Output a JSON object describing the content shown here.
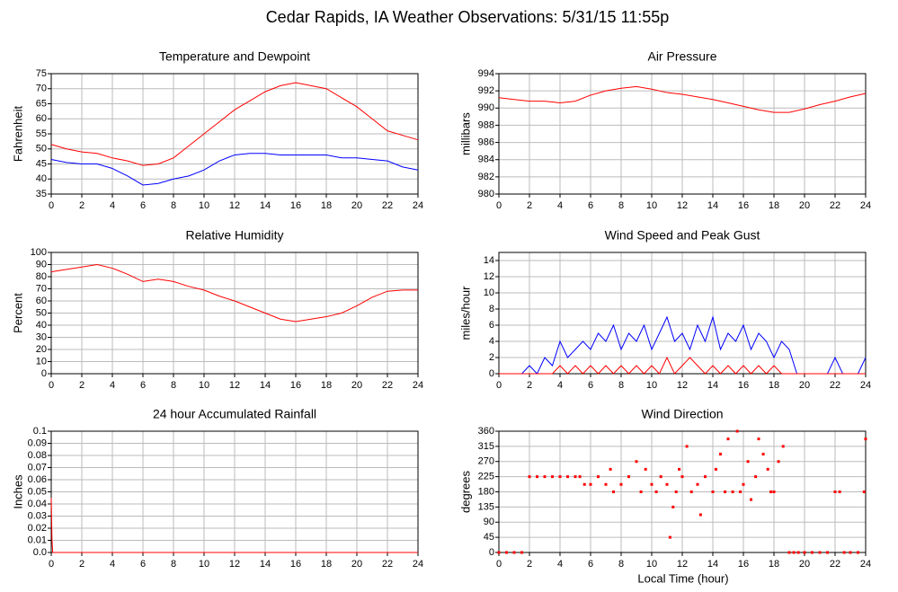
{
  "title": "Cedar Rapids, IA Weather Observations: 5/31/15 11:55p",
  "xlabel": "Local Time (hour)",
  "chart_data": [
    {
      "type": "line",
      "title": "Temperature and Dewpoint",
      "ylabel": "Fahrenheit",
      "x": [
        0,
        1,
        2,
        3,
        4,
        5,
        6,
        7,
        8,
        9,
        10,
        11,
        12,
        13,
        14,
        15,
        16,
        17,
        18,
        19,
        20,
        21,
        22,
        23,
        24
      ],
      "series": [
        {
          "name": "Temperature",
          "color": "#ff0000",
          "values": [
            51.5,
            50,
            49,
            48.5,
            47,
            46,
            44.5,
            45,
            47,
            51,
            55,
            59,
            63,
            66,
            69,
            71,
            72,
            71,
            70,
            67,
            64,
            60,
            56,
            54.5,
            53
          ]
        },
        {
          "name": "Dewpoint",
          "color": "#0000ff",
          "values": [
            46.5,
            45.5,
            45,
            45,
            43.5,
            41,
            38,
            38.5,
            40,
            41,
            43,
            46,
            48,
            48.5,
            48.5,
            48,
            48,
            48,
            48,
            47,
            47,
            46.5,
            46,
            44,
            43
          ]
        }
      ],
      "xlim": [
        0,
        24
      ],
      "xticks": [
        0,
        2,
        4,
        6,
        8,
        10,
        12,
        14,
        16,
        18,
        20,
        22,
        24
      ],
      "ylim": [
        35,
        75
      ],
      "yticks": [
        35,
        40,
        45,
        50,
        55,
        60,
        65,
        70,
        75
      ],
      "grid": true
    },
    {
      "type": "line",
      "title": "Air Pressure",
      "ylabel": "millibars",
      "x": [
        0,
        1,
        2,
        3,
        4,
        5,
        6,
        7,
        8,
        9,
        10,
        11,
        12,
        13,
        14,
        15,
        16,
        17,
        18,
        19,
        20,
        21,
        22,
        23,
        24
      ],
      "series": [
        {
          "name": "Pressure",
          "color": "#ff0000",
          "values": [
            991.2,
            991,
            990.8,
            990.8,
            990.6,
            990.8,
            991.5,
            992,
            992.3,
            992.5,
            992.2,
            991.8,
            991.6,
            991.3,
            991,
            990.6,
            990.2,
            989.8,
            989.5,
            989.5,
            989.9,
            990.4,
            990.8,
            991.3,
            991.7
          ]
        }
      ],
      "xlim": [
        0,
        24
      ],
      "xticks": [
        0,
        2,
        4,
        6,
        8,
        10,
        12,
        14,
        16,
        18,
        20,
        22,
        24
      ],
      "ylim": [
        980,
        994
      ],
      "yticks": [
        980,
        982,
        984,
        986,
        988,
        990,
        992,
        994
      ],
      "grid": true
    },
    {
      "type": "line",
      "title": "Relative Humidity",
      "ylabel": "Percent",
      "x": [
        0,
        1,
        2,
        3,
        4,
        5,
        6,
        7,
        8,
        9,
        10,
        11,
        12,
        13,
        14,
        15,
        16,
        17,
        18,
        19,
        20,
        21,
        22,
        23,
        24
      ],
      "series": [
        {
          "name": "Humidity",
          "color": "#ff0000",
          "values": [
            84,
            86,
            88,
            90,
            87,
            82,
            76,
            78,
            76,
            72,
            69,
            64,
            60,
            55,
            50,
            45,
            43,
            45,
            47,
            50,
            56,
            63,
            68,
            69,
            69
          ]
        }
      ],
      "xlim": [
        0,
        24
      ],
      "xticks": [
        0,
        2,
        4,
        6,
        8,
        10,
        12,
        14,
        16,
        18,
        20,
        22,
        24
      ],
      "ylim": [
        0,
        100
      ],
      "yticks": [
        0,
        10,
        20,
        30,
        40,
        50,
        60,
        70,
        80,
        90,
        100
      ],
      "grid": true
    },
    {
      "type": "line",
      "title": "Wind Speed and Peak Gust",
      "ylabel": "miles/hour",
      "x": [
        0,
        0.5,
        1,
        1.5,
        2,
        2.5,
        3,
        3.5,
        4,
        4.5,
        5,
        5.5,
        6,
        6.5,
        7,
        7.5,
        8,
        8.5,
        9,
        9.5,
        10,
        10.5,
        11,
        11.5,
        12,
        12.5,
        13,
        13.5,
        14,
        14.5,
        15,
        15.5,
        16,
        16.5,
        17,
        17.5,
        18,
        18.5,
        19,
        19.5,
        20,
        20.5,
        21,
        21.5,
        22,
        22.5,
        23,
        23.5,
        24
      ],
      "series": [
        {
          "name": "Wind Speed",
          "color": "#0000ff",
          "values": [
            0,
            0,
            0,
            0,
            1,
            0,
            2,
            1,
            4,
            2,
            3,
            4,
            3,
            5,
            4,
            6,
            3,
            5,
            4,
            6,
            3,
            5,
            7,
            4,
            5,
            3,
            6,
            4,
            7,
            3,
            5,
            4,
            6,
            3,
            5,
            4,
            2,
            4,
            3,
            0,
            0,
            0,
            0,
            0,
            2,
            0,
            0,
            0,
            2
          ]
        },
        {
          "name": "Peak Gust",
          "color": "#ff0000",
          "values": [
            0,
            0,
            0,
            0,
            0,
            0,
            0,
            0,
            1,
            0,
            1,
            0,
            1,
            0,
            1,
            0,
            1,
            0,
            1,
            0,
            1,
            0,
            2,
            0,
            1,
            2,
            1,
            0,
            1,
            0,
            1,
            0,
            1,
            0,
            1,
            0,
            1,
            0,
            0,
            0,
            0,
            0,
            0,
            0,
            0,
            0,
            0,
            0,
            0
          ]
        }
      ],
      "xlim": [
        0,
        24
      ],
      "xticks": [
        0,
        2,
        4,
        6,
        8,
        10,
        12,
        14,
        16,
        18,
        20,
        22,
        24
      ],
      "ylim": [
        0,
        15
      ],
      "yticks": [
        0,
        2,
        4,
        6,
        8,
        10,
        12,
        14
      ],
      "grid": true
    },
    {
      "type": "line",
      "title": "24 hour Accumulated Rainfall",
      "ylabel": "Inches",
      "x": [
        0,
        0.05,
        0.1,
        24
      ],
      "series": [
        {
          "name": "Rainfall",
          "color": "#ff0000",
          "values": [
            0.045,
            0.01,
            0,
            0
          ]
        }
      ],
      "xlim": [
        0,
        24
      ],
      "xticks": [
        0,
        2,
        4,
        6,
        8,
        10,
        12,
        14,
        16,
        18,
        20,
        22,
        24
      ],
      "ylim": [
        0,
        0.1
      ],
      "yticks": [
        {
          "value": 0,
          "label": "0.0"
        },
        0.01,
        0.02,
        0.03,
        0.04,
        0.05,
        0.06,
        0.07,
        0.08,
        0.09,
        0.1
      ],
      "grid": true
    },
    {
      "type": "scatter",
      "title": "Wind Direction",
      "ylabel": "degrees",
      "x": [
        0,
        0.5,
        1,
        1.5,
        2,
        2.5,
        3,
        3.5,
        4,
        4.5,
        5,
        5.3,
        5.6,
        6,
        6.5,
        7,
        7.3,
        7.5,
        8,
        8.5,
        9,
        9.3,
        9.6,
        10,
        10.3,
        10.6,
        11,
        11.2,
        11.4,
        11.6,
        11.8,
        12,
        12.3,
        12.6,
        13,
        13.2,
        13.5,
        14,
        14.2,
        14.5,
        14.8,
        15,
        15.3,
        15.6,
        15.8,
        16,
        16.3,
        16.5,
        16.8,
        17,
        17.3,
        17.6,
        17.8,
        18,
        18.3,
        18.6,
        19,
        19.3,
        19.6,
        20,
        20.5,
        21,
        21.5,
        22,
        22.3,
        22.6,
        23,
        23.5,
        23.9,
        24
      ],
      "series": [
        {
          "name": "Direction",
          "color": "#ff0000",
          "values": [
            0,
            0,
            0,
            0,
            225,
            225,
            225,
            225,
            225,
            225,
            225,
            225,
            202,
            202,
            225,
            202,
            247,
            180,
            202,
            225,
            270,
            180,
            247,
            202,
            180,
            225,
            202,
            45,
            135,
            180,
            247,
            225,
            315,
            180,
            202,
            112,
            225,
            180,
            247,
            292,
            180,
            337,
            180,
            360,
            180,
            202,
            270,
            157,
            225,
            337,
            292,
            247,
            180,
            180,
            270,
            315,
            0,
            0,
            0,
            0,
            0,
            0,
            0,
            180,
            180,
            0,
            0,
            0,
            180,
            337
          ]
        }
      ],
      "xlim": [
        0,
        24
      ],
      "xticks": [
        0,
        2,
        4,
        6,
        8,
        10,
        12,
        14,
        16,
        18,
        20,
        22,
        24
      ],
      "ylim": [
        0,
        360
      ],
      "yticks": [
        0,
        45,
        90,
        135,
        180,
        225,
        270,
        315,
        360
      ],
      "grid": true
    }
  ]
}
